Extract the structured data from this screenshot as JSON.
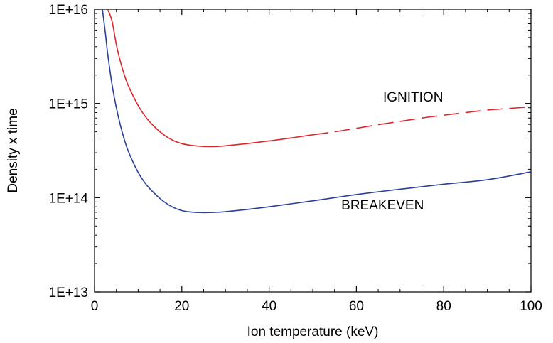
{
  "chart_data": {
    "type": "line",
    "title": "",
    "xlabel": "Ion temperature (keV)",
    "ylabel": "Density x time",
    "xlim": [
      0,
      100
    ],
    "ylim": [
      10000000000000.0,
      1e+16
    ],
    "yscale": "log",
    "grid": false,
    "x_ticks": [
      0,
      20,
      40,
      60,
      80,
      100
    ],
    "x_tick_labels": [
      "0",
      "20",
      "40",
      "60",
      "80",
      "100"
    ],
    "y_ticks": [
      10000000000000.0,
      100000000000000.0,
      1000000000000000.0,
      1e+16
    ],
    "y_tick_labels": [
      "1E+13",
      "1E+14",
      "1E+15",
      "1E+16"
    ],
    "series": [
      {
        "name": "IGNITION",
        "color": "#e0262b",
        "solid_until_x": 52,
        "style_after": "dashed",
        "x": [
          3,
          4,
          5,
          6,
          7,
          8,
          10,
          12,
          14,
          16,
          18,
          20,
          22,
          25,
          28,
          30,
          35,
          40,
          45,
          50,
          55,
          60,
          65,
          70,
          75,
          80,
          85,
          90,
          95,
          100
        ],
        "y": [
          1e+16,
          7500000000000000.0,
          4200000000000000.0,
          2700000000000000.0,
          1900000000000000.0,
          1450000000000000.0,
          950000000000000.0,
          690000000000000.0,
          550000000000000.0,
          460000000000000.0,
          405000000000000.0,
          375000000000000.0,
          360000000000000.0,
          350000000000000.0,
          350000000000000.0,
          355000000000000.0,
          375000000000000.0,
          400000000000000.0,
          430000000000000.0,
          465000000000000.0,
          500000000000000.0,
          545000000000000.0,
          595000000000000.0,
          645000000000000.0,
          700000000000000.0,
          750000000000000.0,
          800000000000000.0,
          850000000000000.0,
          885000000000000.0,
          920000000000000.0
        ]
      },
      {
        "name": "BREAKEVEN",
        "color": "#2b3f98",
        "x": [
          1.8,
          2.5,
          3,
          4,
          5,
          6,
          7,
          8,
          10,
          12,
          14,
          16,
          18,
          20,
          22,
          25,
          28,
          30,
          35,
          40,
          45,
          50,
          55,
          60,
          70,
          80,
          90,
          100
        ],
        "y": [
          1e+16,
          5500000000000000.0,
          3400000000000000.0,
          1600000000000000.0,
          900000000000000.0,
          570000000000000.0,
          390000000000000.0,
          290000000000000.0,
          185000000000000.0,
          135000000000000.0,
          108000000000000.0,
          90000000000000.0,
          79000000000000.0,
          73000000000000.0,
          70500000000000.0,
          69500000000000.0,
          70000000000000.0,
          71000000000000.0,
          75000000000000.0,
          80000000000000.0,
          86000000000000.0,
          92500000000000.0,
          100000000000000.0,
          108000000000000.0,
          123000000000000.0,
          139000000000000.0,
          155000000000000.0,
          188000000000000.0
        ]
      }
    ],
    "annotations": [
      {
        "text": "IGNITION",
        "x": 73,
        "y": 1050000000000000.0
      },
      {
        "text": "BREAKEVEN",
        "x": 66,
        "y": 75000000000000.0
      }
    ]
  }
}
